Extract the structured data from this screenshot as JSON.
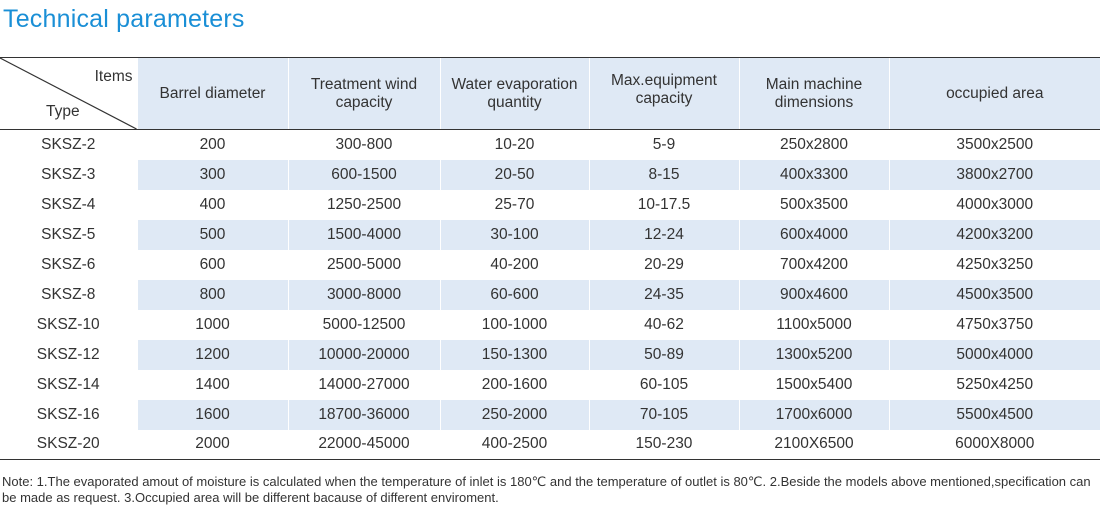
{
  "title": "Technical parameters",
  "colors": {
    "title": "#1a8fd6",
    "header_bg": "#dfe9f5",
    "stripe_bg": "#dfe9f5",
    "rule": "#333333"
  },
  "table": {
    "corner": {
      "items": "Items",
      "type": "Type"
    },
    "headers": [
      [
        "Barrel diameter"
      ],
      [
        "Treatment wind",
        "capacity"
      ],
      [
        "Water evaporation",
        "quantity"
      ],
      [
        "Max.equipment",
        "capacity"
      ],
      [
        "Main machine",
        "dimensions"
      ],
      [
        "occupied area"
      ]
    ],
    "rows": [
      [
        "SKSZ-2",
        "200",
        "300-800",
        "10-20",
        "5-9",
        "250x2800",
        "3500x2500"
      ],
      [
        "SKSZ-3",
        "300",
        "600-1500",
        "20-50",
        "8-15",
        "400x3300",
        "3800x2700"
      ],
      [
        "SKSZ-4",
        "400",
        "1250-2500",
        "25-70",
        "10-17.5",
        "500x3500",
        "4000x3000"
      ],
      [
        "SKSZ-5",
        "500",
        "1500-4000",
        "30-100",
        "12-24",
        "600x4000",
        "4200x3200"
      ],
      [
        "SKSZ-6",
        "600",
        "2500-5000",
        "40-200",
        "20-29",
        "700x4200",
        "4250x3250"
      ],
      [
        "SKSZ-8",
        "800",
        "3000-8000",
        "60-600",
        "24-35",
        "900x4600",
        "4500x3500"
      ],
      [
        "SKSZ-10",
        "1000",
        "5000-12500",
        "100-1000",
        "40-62",
        "1100x5000",
        "4750x3750"
      ],
      [
        "SKSZ-12",
        "1200",
        "10000-20000",
        "150-1300",
        "50-89",
        "1300x5200",
        "5000x4000"
      ],
      [
        "SKSZ-14",
        "1400",
        "14000-27000",
        "200-1600",
        "60-105",
        "1500x5400",
        "5250x4250"
      ],
      [
        "SKSZ-16",
        "1600",
        "18700-36000",
        "250-2000",
        "70-105",
        "1700x6000",
        "5500x4500"
      ],
      [
        "SKSZ-20",
        "2000",
        "22000-45000",
        "400-2500",
        "150-230",
        "2100X6500",
        "6000X8000"
      ]
    ]
  },
  "note": "Note: 1.The evaporated amout of moisture is calculated when the temperature of inlet is 180℃ and the temperature of outlet is 80℃. 2.Beside the models above mentioned,specification can be made as request. 3.Occupied area will be different bacause of different enviroment."
}
